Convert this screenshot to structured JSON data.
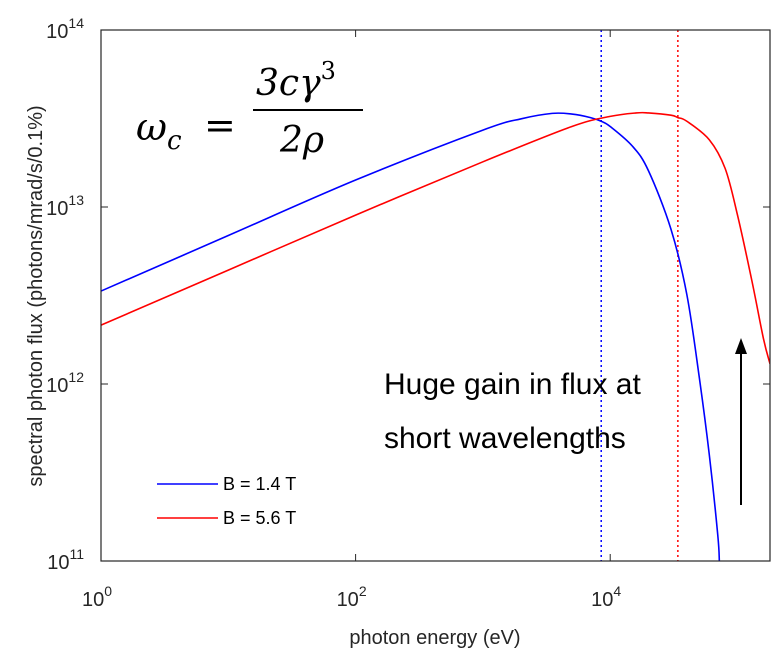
{
  "chart_data": {
    "type": "line",
    "xlabel": "photon energy (eV)",
    "ylabel": "spectral photon flux (photons/mrad/s/0.1%)",
    "xscale": "log",
    "yscale": "log",
    "xlim": [
      1,
      180000
    ],
    "ylim": [
      100000000000.0,
      100000000000000.0
    ],
    "grid": false,
    "legend_position": "bottom-left",
    "x_ticks": [
      {
        "value": 1,
        "base": "10",
        "exp": "0"
      },
      {
        "value": 100,
        "base": "10",
        "exp": "2"
      },
      {
        "value": 10000,
        "base": "10",
        "exp": "4"
      }
    ],
    "y_ticks": [
      {
        "value": 100000000000.0,
        "base": "10",
        "exp": "11"
      },
      {
        "value": 1000000000000.0,
        "base": "10",
        "exp": "12"
      },
      {
        "value": 10000000000000.0,
        "base": "10",
        "exp": "13"
      },
      {
        "value": 100000000000000.0,
        "base": "10",
        "exp": "14"
      }
    ],
    "series": [
      {
        "name": "B = 1.4 T",
        "color": "#0000ff",
        "critical_energy_eV": 8500,
        "x": [
          1,
          10,
          100,
          1000,
          2000,
          3500,
          5000,
          7000,
          8500,
          10000,
          15000,
          20000,
          30000,
          40000,
          50000,
          60000,
          70000,
          72000
        ],
        "y": [
          3350000000000.0,
          6900000000000.0,
          14200000000000.0,
          27200000000000.0,
          31500000000000.0,
          33800000000000.0,
          33500000000000.0,
          32000000000000.0,
          30500000000000.0,
          28500000000000.0,
          22000000000000.0,
          16000000000000.0,
          7500000000000.0,
          3200000000000.0,
          1100000000000.0,
          400000000000.0,
          140000000000.0,
          100000000000.0
        ]
      },
      {
        "name": "B = 5.6 T",
        "color": "#ff0000",
        "critical_energy_eV": 34000,
        "x": [
          1,
          10,
          100,
          1000,
          5000,
          10000,
          16000,
          20000,
          30000,
          34000,
          40000,
          60000,
          80000,
          100000,
          130000,
          160000,
          180000
        ],
        "y": [
          2150000000000.0,
          4400000000000.0,
          9000000000000.0,
          18000000000000.0,
          28500000000000.0,
          32500000000000.0,
          34000000000000.0,
          34000000000000.0,
          33000000000000.0,
          32000000000000.0,
          30500000000000.0,
          24000000000000.0,
          16500000000000.0,
          9000000000000.0,
          3800000000000.0,
          1800000000000.0,
          1300000000000.0
        ]
      }
    ],
    "annotations": {
      "formula": {
        "lhs_symbol": "ω",
        "lhs_sub": "c",
        "equals": "=",
        "numerator_main": "3cγ",
        "numerator_sup": "3",
        "denominator": "2ρ"
      },
      "note_line1": "Huge gain in flux at",
      "note_line2": "short wavelengths"
    }
  }
}
